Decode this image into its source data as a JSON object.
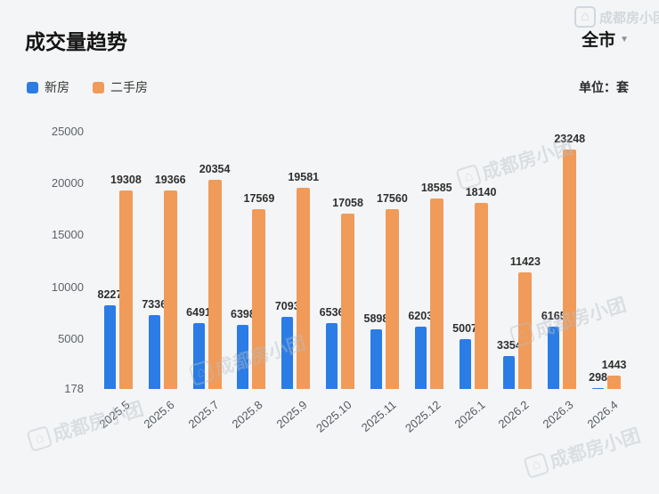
{
  "header": {
    "title": "成交量趋势",
    "region_selector": "全市",
    "unit_label": "单位：套"
  },
  "watermark": {
    "text": "成都房小团"
  },
  "chart_data": {
    "type": "bar",
    "title": "成交量趋势",
    "categories": [
      "2025.5",
      "2025.6",
      "2025.7",
      "2025.8",
      "2025.9",
      "2025.10",
      "2025.11",
      "2025.12",
      "2026.1",
      "2026.2",
      "2026.3",
      "2026.4"
    ],
    "series": [
      {
        "name": "新房",
        "color": "#2b7ce5",
        "values": [
          8227,
          7336,
          6491,
          6398,
          7093,
          6536,
          5898,
          6203,
          5007,
          3354,
          6165,
          298
        ]
      },
      {
        "name": "二手房",
        "color": "#f09b5a",
        "values": [
          19308,
          19366,
          20354,
          17569,
          19581,
          17058,
          17560,
          18585,
          18140,
          11423,
          23248,
          1443
        ]
      }
    ],
    "ylabel": "套",
    "ylim": [
      178,
      25000
    ],
    "yticks": [
      178,
      5000,
      10000,
      15000,
      20000,
      25000
    ],
    "grid": false,
    "legend_position": "top-left"
  }
}
